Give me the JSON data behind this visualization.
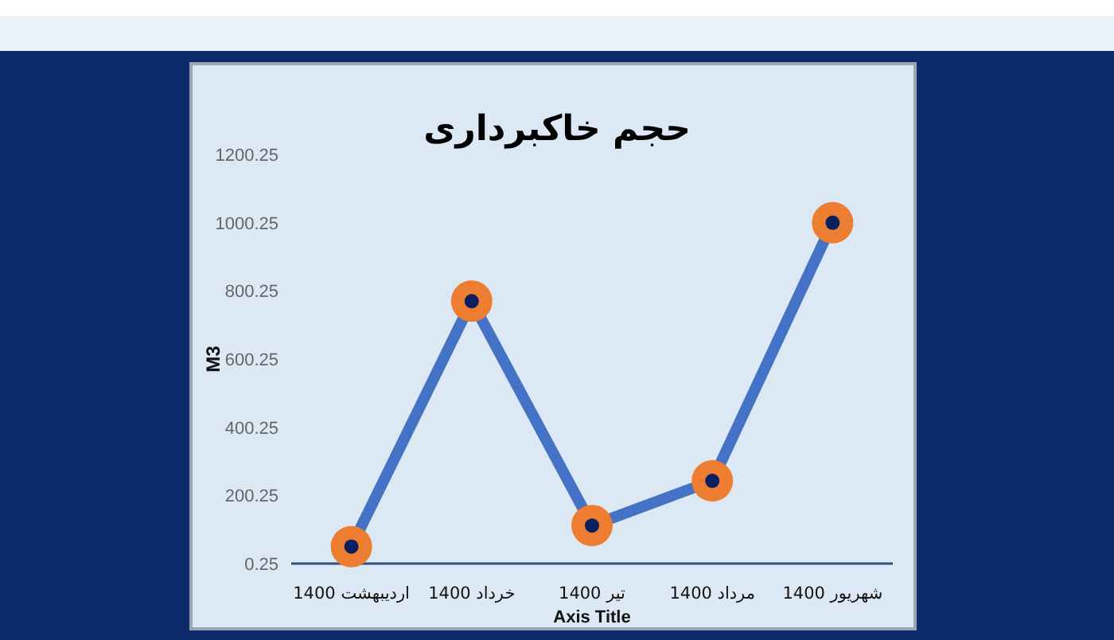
{
  "chart_data": {
    "type": "line",
    "title": "حجم خاکبرداری",
    "xlabel": "Axis Title",
    "ylabel": "M3",
    "categories": [
      "اردیبهشت 1400",
      "خرداد 1400",
      "تیر 1400",
      "مرداد 1400",
      "شهریور 1400"
    ],
    "series": [
      {
        "color": "#4472c4",
        "values": [
          50,
          770,
          112,
          243,
          1000
        ]
      }
    ],
    "ylim": [
      0.25,
      1200.25
    ],
    "yticks": [
      0.25,
      200.25,
      400.25,
      600.25,
      800.25,
      1000.25,
      1200.25
    ],
    "marker": "circle",
    "line_style": "solid"
  }
}
